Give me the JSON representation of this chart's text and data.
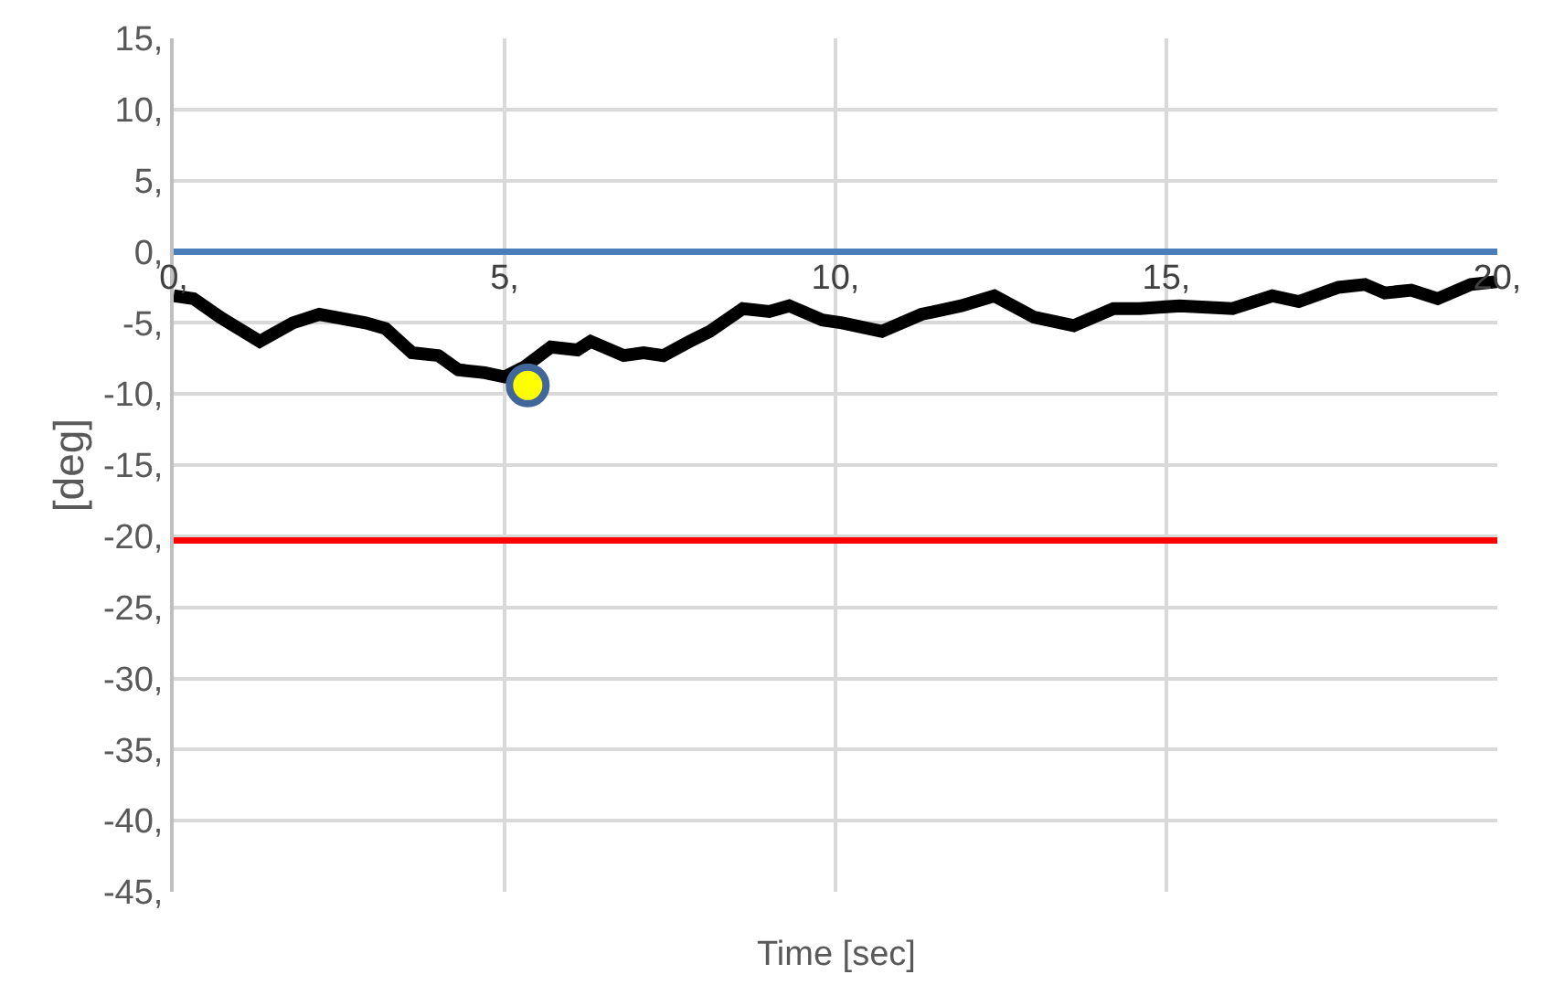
{
  "chart_data": {
    "type": "line",
    "xlabel": "Time [sec]",
    "ylabel": "[deg]",
    "xlim": [
      0,
      20
    ],
    "ylim": [
      -45,
      15
    ],
    "xticks": [
      {
        "value": 0,
        "label": "0,"
      },
      {
        "value": 5,
        "label": "5,"
      },
      {
        "value": 10,
        "label": "10,"
      },
      {
        "value": 15,
        "label": "15,"
      },
      {
        "value": 20,
        "label": "20,"
      }
    ],
    "yticks": [
      {
        "value": 15,
        "label": "15,"
      },
      {
        "value": 10,
        "label": "10,"
      },
      {
        "value": 5,
        "label": "5,"
      },
      {
        "value": 0,
        "label": "0,"
      },
      {
        "value": -5,
        "label": "-5,"
      },
      {
        "value": -10,
        "label": "-10,"
      },
      {
        "value": -15,
        "label": "-15,"
      },
      {
        "value": -20,
        "label": "-20,"
      },
      {
        "value": -25,
        "label": "-25,"
      },
      {
        "value": -30,
        "label": "-30,"
      },
      {
        "value": -35,
        "label": "-35,"
      },
      {
        "value": -40,
        "label": "-40,"
      },
      {
        "value": -45,
        "label": "-45,"
      }
    ],
    "grid": true,
    "series": [
      {
        "color": "#4a7ebb",
        "x": [
          0,
          20
        ],
        "values": [
          0,
          0
        ]
      },
      {
        "color": "#ff0000",
        "x": [
          0,
          20
        ],
        "values": [
          -20.3,
          -20.3
        ]
      },
      {
        "color": "#000000",
        "x": [
          0.0,
          0.3,
          0.7,
          1.3,
          1.8,
          2.2,
          2.9,
          3.2,
          3.6,
          4.0,
          4.3,
          4.7,
          5.0,
          5.3,
          5.7,
          6.1,
          6.3,
          6.8,
          7.1,
          7.4,
          7.8,
          8.1,
          8.6,
          9.0,
          9.3,
          9.8,
          10.1,
          10.7,
          11.3,
          11.9,
          12.4,
          13.0,
          13.6,
          14.2,
          14.6,
          15.2,
          16.0,
          16.6,
          17.0,
          17.6,
          18.0,
          18.3,
          18.7,
          19.1,
          19.6,
          20.0
        ],
        "values": [
          -3.1,
          -3.3,
          -4.6,
          -6.3,
          -5.0,
          -4.4,
          -5.0,
          -5.4,
          -7.1,
          -7.3,
          -8.3,
          -8.5,
          -8.8,
          -8.1,
          -6.7,
          -6.9,
          -6.3,
          -7.3,
          -7.1,
          -7.3,
          -6.3,
          -5.6,
          -4.0,
          -4.2,
          -3.8,
          -4.8,
          -5.0,
          -5.6,
          -4.4,
          -3.8,
          -3.1,
          -4.6,
          -5.2,
          -4.0,
          -4.0,
          -3.8,
          -4.0,
          -3.1,
          -3.5,
          -2.5,
          -2.3,
          -2.9,
          -2.7,
          -3.3,
          -2.3,
          -2.1
        ]
      },
      {
        "type": "scatter",
        "color": "#ffff00",
        "x": [
          5.35
        ],
        "values": [
          -9.4
        ]
      }
    ]
  }
}
